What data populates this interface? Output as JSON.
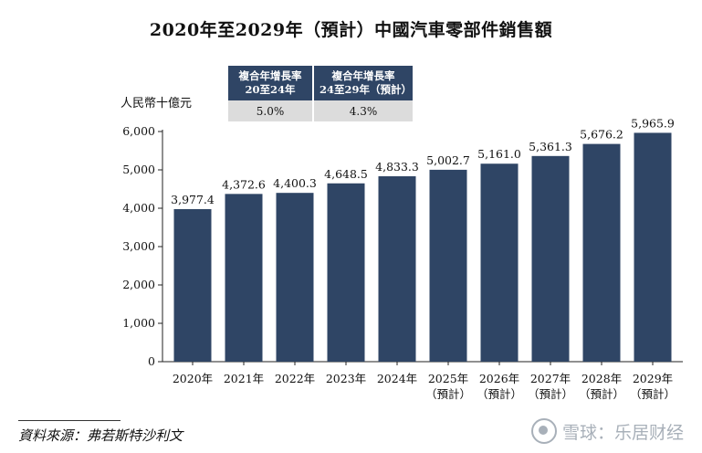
{
  "chart_data": {
    "type": "bar",
    "title": "2020年至2029年（預計）中國汽車零部件銷售額",
    "ylabel": "人民幣十億元",
    "xlabel": "",
    "ylim": [
      0,
      6000
    ],
    "yticks": [
      "0",
      "1,000",
      "2,000",
      "3,000",
      "4,000",
      "5,000",
      "6,000"
    ],
    "ytick_values": [
      0,
      1000,
      2000,
      3000,
      4000,
      5000,
      6000
    ],
    "categories": [
      "2020年",
      "2021年",
      "2022年",
      "2023年",
      "2024年",
      "2025年",
      "2026年",
      "2027年",
      "2028年",
      "2029年"
    ],
    "category_notes": [
      "",
      "",
      "",
      "",
      "",
      "（預計）",
      "（預計）",
      "（預計）",
      "（預計）",
      "（預計）"
    ],
    "values": [
      3977.4,
      4372.6,
      4400.3,
      4648.5,
      4833.3,
      5002.7,
      5161.0,
      5361.3,
      5676.2,
      5965.9
    ],
    "value_labels": [
      "3,977.4",
      "4,372.6",
      "4,400.3",
      "4,648.5",
      "4,833.3",
      "5,002.7",
      "5,161.0",
      "5,361.3",
      "5,676.2",
      "5,965.9"
    ],
    "bar_color": "#2f4565",
    "grid": false
  },
  "cagr_table": {
    "headers": [
      {
        "line1": "複合年增長率",
        "line2": "20至24年"
      },
      {
        "line1": "複合年增長率",
        "line2": "24至29年（預計）"
      }
    ],
    "values": [
      "5.0%",
      "4.3%"
    ]
  },
  "source": "資料來源：弗若斯特沙利文",
  "watermark": "雪球：乐居财经",
  "colors": {
    "bar": "#2f4565",
    "header_bg": "#2f4565",
    "cell_bg": "#dcdcdc"
  }
}
